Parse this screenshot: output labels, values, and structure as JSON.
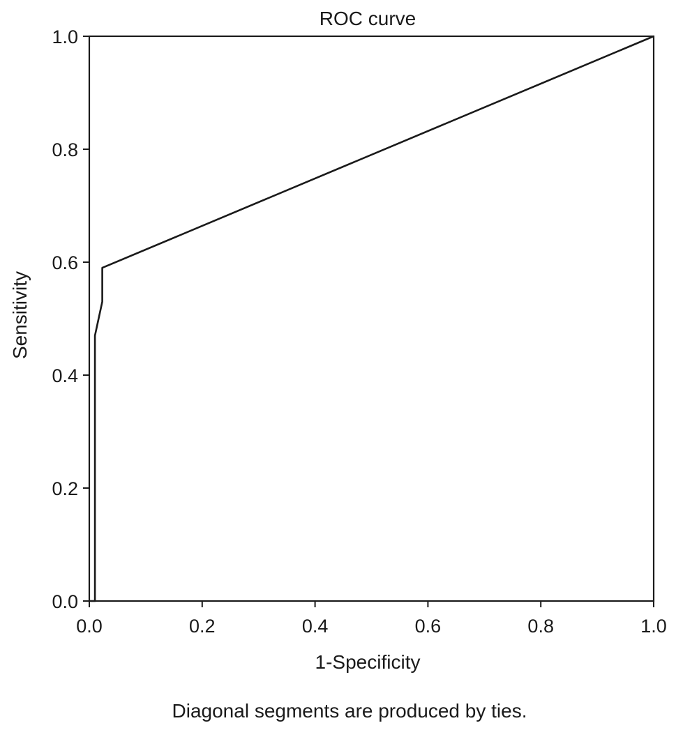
{
  "chart_data": {
    "type": "line",
    "title": "ROC curve",
    "xlabel": "1-Specificity",
    "ylabel": "Sensitivity",
    "footnote": "Diagonal segments are produced by ties.",
    "xlim": [
      0.0,
      1.0
    ],
    "ylim": [
      0.0,
      1.0
    ],
    "x_ticks": [
      "0.0",
      "0.2",
      "0.4",
      "0.6",
      "0.8",
      "1.0"
    ],
    "y_ticks": [
      "0.0",
      "0.2",
      "0.4",
      "0.6",
      "0.8",
      "1.0"
    ],
    "grid": false,
    "line_color": "#1a1a1a",
    "series": [
      {
        "x": [
          0.0,
          0.01,
          0.01,
          0.023,
          0.023,
          1.0
        ],
        "y": [
          0.0,
          0.0,
          0.47,
          0.53,
          0.59,
          1.0
        ]
      }
    ]
  }
}
